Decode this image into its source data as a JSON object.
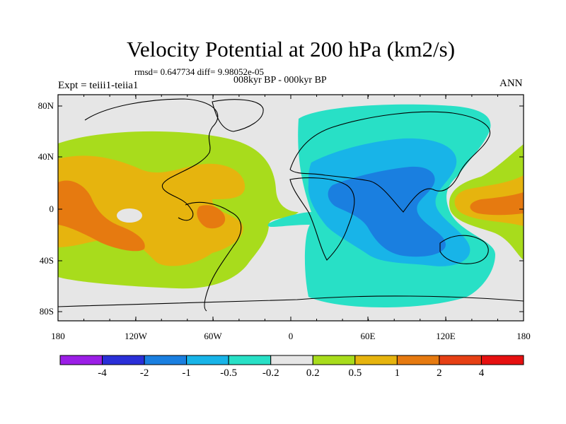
{
  "title": "Velocity Potential at 200 hPa (km2/s)",
  "stats": "rmsd= 0.647734 diff= 9.98052e-05",
  "period": "008kyr BP - 000kyr BP",
  "experiment": "Expt = teiii1-teiia1",
  "season": "ANN",
  "y_axis_labels": [
    "80N",
    "40N",
    "0",
    "40S",
    "80S"
  ],
  "x_axis_labels": [
    "180",
    "120W",
    "60W",
    "0",
    "60E",
    "120E",
    "180"
  ],
  "colorbar": {
    "labels": [
      "-4",
      "-2",
      "-1",
      "-0.5",
      "-0.2",
      "0.2",
      "0.5",
      "1",
      "2",
      "4"
    ],
    "colors": [
      "#9b1ee6",
      "#2a2fd8",
      "#1a7fe0",
      "#18b4e8",
      "#28e0c6",
      "#e6e6e6",
      "#a8dc1c",
      "#e6b40e",
      "#e67a10",
      "#e64014",
      "#e61010"
    ]
  },
  "map_colors": {
    "ocean": "#e6e6e6",
    "level_pos_0_2": "#a8dc1c",
    "level_pos_0_5": "#e6b40e",
    "level_pos_1": "#e67a10",
    "level_neg_0_2": "#28e0c6",
    "level_neg_0_5": "#18b4e8",
    "level_neg_1": "#1a7fe0"
  }
}
